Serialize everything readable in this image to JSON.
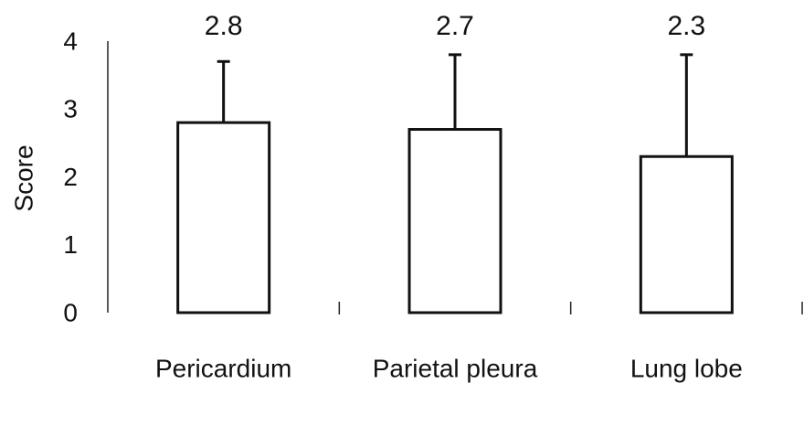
{
  "chart_data": {
    "type": "bar",
    "y_label": "Score",
    "categories": [
      "Pericardium",
      "Parietal pleura",
      "Lung lobe"
    ],
    "values": [
      2.8,
      2.7,
      2.3
    ],
    "errors": [
      0.9,
      1.1,
      1.5
    ],
    "color": "#ffffff",
    "ylim": [
      0,
      4
    ],
    "yticks": [
      0,
      1,
      2,
      3,
      4
    ],
    "grid": false
  }
}
